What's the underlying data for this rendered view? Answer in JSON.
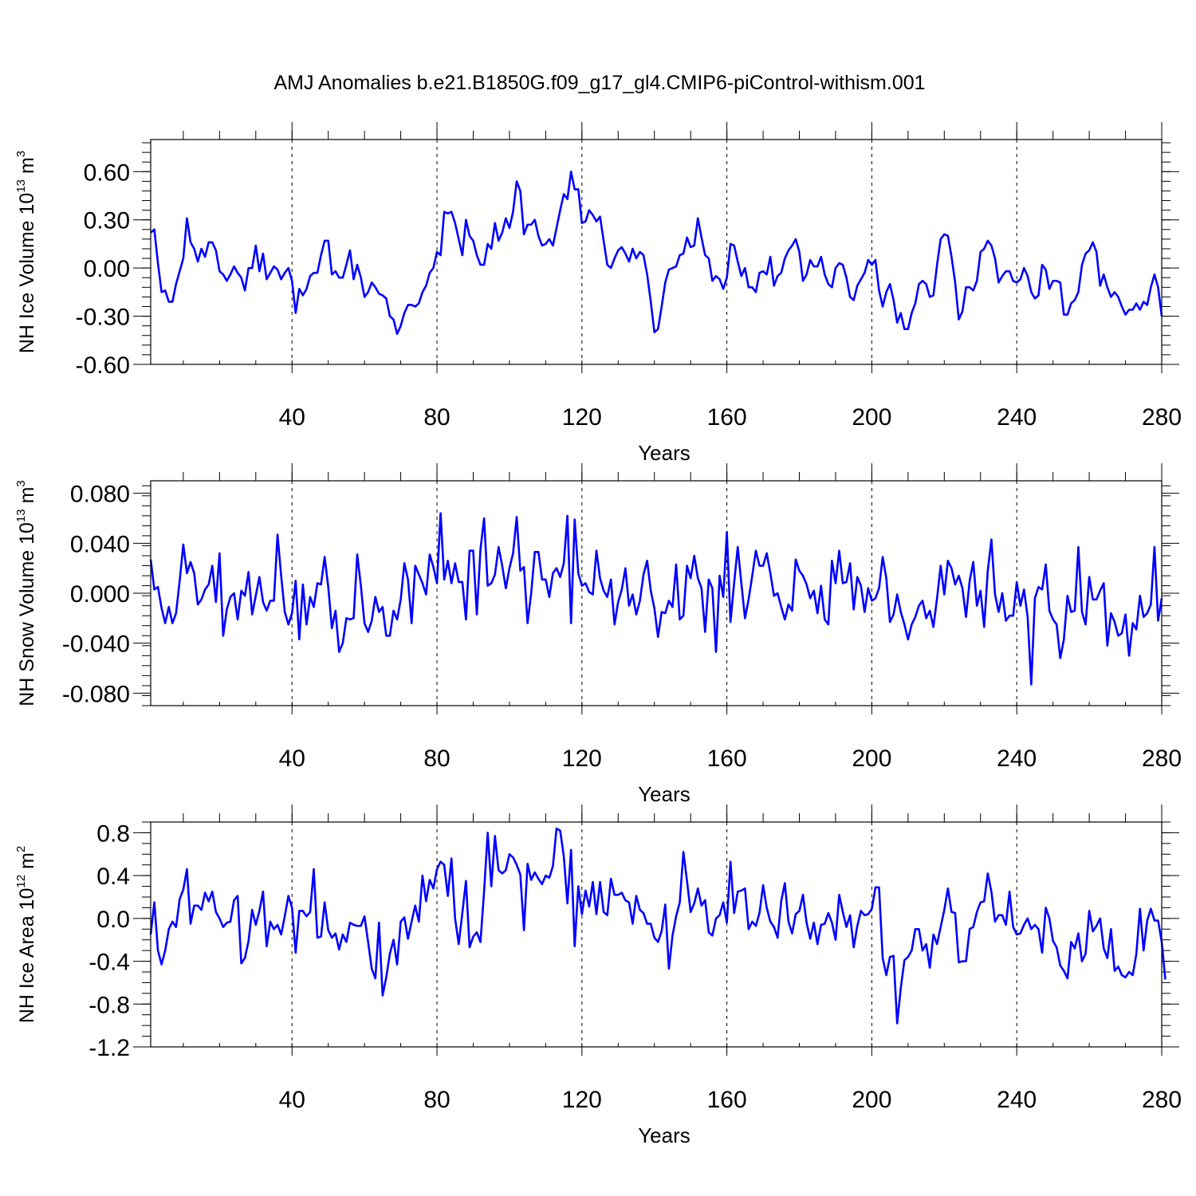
{
  "title": "AMJ Anomalies b.e21.B1850G.f09_g17_gl4.CMIP6-piControl-withism.001",
  "colors": {
    "line": "#0000ff",
    "axis": "#000000",
    "grid": "#000000"
  },
  "chart_data": [
    {
      "type": "line",
      "ylabel_main": "NH Ice Volume 10",
      "ylabel_exp": "13",
      "ylabel_unit": " m",
      "ylabel_unit_exp": "3",
      "xlabel": "Years",
      "xlim": [
        1,
        280
      ],
      "ylim": [
        -0.6,
        0.8
      ],
      "yticks": [
        -0.6,
        -0.3,
        0.0,
        0.3,
        0.6
      ],
      "ytick_labels": [
        "-0.60",
        "-0.30",
        "0.00",
        "0.30",
        "0.60"
      ],
      "xticks": [
        40,
        80,
        120,
        160,
        200,
        240,
        280
      ],
      "xtick_labels": [
        "40",
        "80",
        "120",
        "160",
        "200",
        "240",
        "280"
      ],
      "grid": "vertical dashed at x ticks",
      "series": [
        {
          "x_start": 1,
          "values": [
            0.22,
            0.24,
            0.03,
            -0.15,
            -0.14,
            -0.21,
            -0.21,
            -0.1,
            -0.02,
            0.06,
            0.31,
            0.16,
            0.12,
            0.04,
            0.12,
            0.07,
            0.16,
            0.16,
            0.11,
            -0.02,
            -0.04,
            -0.08,
            -0.04,
            0.01,
            -0.03,
            -0.06,
            -0.14,
            0.0,
            0.0,
            0.14,
            -0.02,
            0.09,
            -0.07,
            -0.03,
            0.01,
            -0.01,
            -0.07,
            -0.03,
            0.0,
            -0.08,
            -0.28,
            -0.13,
            -0.17,
            -0.13,
            -0.05,
            -0.03,
            -0.03,
            0.08,
            0.17,
            0.17,
            -0.04,
            -0.02,
            -0.06,
            -0.06,
            0.02,
            0.11,
            -0.07,
            0.02,
            -0.06,
            -0.18,
            -0.15,
            -0.09,
            -0.12,
            -0.16,
            -0.17,
            -0.19,
            -0.3,
            -0.32,
            -0.41,
            -0.36,
            -0.28,
            -0.23,
            -0.23,
            -0.24,
            -0.22,
            -0.15,
            -0.11,
            -0.03,
            0.0,
            0.1,
            0.08,
            0.35,
            0.34,
            0.35,
            0.28,
            0.18,
            0.08,
            0.3,
            0.2,
            0.17,
            0.08,
            0.02,
            0.02,
            0.15,
            0.12,
            0.28,
            0.17,
            0.22,
            0.31,
            0.25,
            0.35,
            0.54,
            0.48,
            0.21,
            0.27,
            0.27,
            0.3,
            0.2,
            0.14,
            0.15,
            0.18,
            0.14,
            0.25,
            0.36,
            0.46,
            0.43,
            0.6,
            0.49,
            0.49,
            0.28,
            0.29,
            0.36,
            0.33,
            0.29,
            0.32,
            0.17,
            0.02,
            0.0,
            0.06,
            0.11,
            0.13,
            0.09,
            0.04,
            0.12,
            0.06,
            0.1,
            0.08,
            -0.04,
            -0.21,
            -0.4,
            -0.38,
            -0.24,
            -0.09,
            -0.01,
            0.0,
            0.01,
            0.08,
            0.09,
            0.19,
            0.13,
            0.14,
            0.31,
            0.19,
            0.08,
            0.06,
            -0.08,
            -0.05,
            -0.07,
            -0.13,
            -0.06,
            0.15,
            0.14,
            0.04,
            -0.05,
            0.0,
            -0.12,
            -0.12,
            -0.15,
            -0.03,
            -0.02,
            -0.04,
            0.07,
            -0.11,
            -0.05,
            -0.03,
            0.06,
            0.11,
            0.14,
            0.18,
            0.1,
            -0.08,
            -0.04,
            0.05,
            0.01,
            0.01,
            0.07,
            -0.04,
            -0.1,
            -0.12,
            0.0,
            0.03,
            0.02,
            -0.06,
            -0.18,
            -0.2,
            -0.11,
            -0.07,
            -0.03,
            0.05,
            0.02,
            0.05,
            -0.14,
            -0.24,
            -0.15,
            -0.1,
            -0.2,
            -0.34,
            -0.28,
            -0.38,
            -0.38,
            -0.28,
            -0.22,
            -0.1,
            -0.08,
            -0.1,
            -0.18,
            -0.17,
            0.02,
            0.18,
            0.21,
            0.2,
            0.07,
            -0.09,
            -0.32,
            -0.27,
            -0.12,
            -0.12,
            -0.14,
            -0.08,
            0.1,
            0.12,
            0.17,
            0.14,
            0.06,
            -0.09,
            -0.05,
            -0.02,
            -0.02,
            -0.08,
            -0.09,
            -0.07,
            0.0,
            -0.05,
            -0.15,
            -0.19,
            -0.17,
            0.02,
            -0.01,
            -0.13,
            -0.08,
            -0.08,
            -0.09,
            -0.29,
            -0.29,
            -0.22,
            -0.2,
            -0.15,
            0.02,
            0.09,
            0.11,
            0.16,
            0.1,
            -0.11,
            -0.04,
            -0.12,
            -0.18,
            -0.15,
            -0.18,
            -0.24,
            -0.29,
            -0.26,
            -0.26,
            -0.22,
            -0.26,
            -0.21,
            -0.23,
            -0.12,
            -0.04,
            -0.12,
            -0.3
          ]
        }
      ]
    },
    {
      "type": "line",
      "ylabel_main": "NH Snow Volume 10",
      "ylabel_exp": "13",
      "ylabel_unit": " m",
      "ylabel_unit_exp": "3",
      "xlabel": "Years",
      "xlim": [
        1,
        280
      ],
      "ylim": [
        -0.09,
        0.09
      ],
      "yticks": [
        -0.08,
        -0.04,
        0.0,
        0.04,
        0.08
      ],
      "ytick_labels": [
        "-0.080",
        "-0.040",
        "0.000",
        "0.040",
        "0.080"
      ],
      "xticks": [
        40,
        80,
        120,
        160,
        200,
        240,
        280
      ],
      "xtick_labels": [
        "40",
        "80",
        "120",
        "160",
        "200",
        "240",
        "280"
      ],
      "grid": "vertical dashed at x ticks",
      "series": [
        {
          "x_start": 1,
          "values": [
            0.027,
            0.003,
            0.005,
            -0.012,
            -0.024,
            -0.011,
            -0.024,
            -0.016,
            0.01,
            0.039,
            0.016,
            0.025,
            0.016,
            -0.009,
            -0.005,
            0.003,
            0.007,
            0.022,
            -0.007,
            0.032,
            -0.034,
            -0.013,
            -0.003,
            0.0,
            -0.021,
            0.002,
            -0.002,
            0.017,
            -0.017,
            -0.002,
            0.013,
            -0.007,
            -0.014,
            -0.006,
            -0.006,
            0.047,
            0.014,
            -0.015,
            -0.025,
            -0.016,
            0.01,
            -0.037,
            0.007,
            -0.025,
            -0.003,
            -0.011,
            0.008,
            0.007,
            0.029,
            0.005,
            -0.028,
            -0.014,
            -0.047,
            -0.04,
            -0.02,
            -0.021,
            -0.02,
            0.031,
            0.006,
            -0.024,
            -0.031,
            -0.022,
            -0.003,
            -0.015,
            -0.011,
            -0.034,
            -0.034,
            -0.014,
            -0.021,
            -0.005,
            0.024,
            0.011,
            -0.024,
            0.022,
            0.015,
            0.008,
            -0.001,
            0.031,
            0.021,
            0.008,
            0.064,
            0.011,
            0.026,
            0.008,
            0.024,
            0.009,
            0.009,
            -0.021,
            0.034,
            0.034,
            -0.017,
            0.035,
            0.06,
            0.006,
            0.008,
            0.015,
            0.037,
            0.022,
            0.004,
            0.02,
            0.032,
            0.061,
            0.018,
            0.021,
            -0.024,
            0.0,
            0.033,
            0.033,
            0.011,
            0.011,
            -0.003,
            0.016,
            0.02,
            0.013,
            0.024,
            0.062,
            -0.024,
            0.059,
            0.016,
            0.006,
            0.008,
            0.001,
            -0.001,
            0.034,
            0.012,
            0.002,
            -0.003,
            0.011,
            -0.025,
            -0.007,
            0.003,
            0.02,
            -0.01,
            -0.001,
            -0.017,
            -0.006,
            0.015,
            0.026,
            0.002,
            -0.012,
            -0.035,
            -0.015,
            -0.016,
            -0.006,
            -0.011,
            0.023,
            -0.021,
            -0.018,
            0.022,
            0.012,
            0.03,
            0.012,
            0.004,
            -0.031,
            0.011,
            0.004,
            -0.047,
            0.014,
            -0.003,
            0.049,
            -0.023,
            0.008,
            0.037,
            0.008,
            -0.02,
            -0.005,
            0.014,
            0.034,
            0.022,
            0.022,
            0.032,
            0.016,
            -0.002,
            0.0,
            -0.011,
            -0.021,
            -0.009,
            -0.014,
            0.027,
            0.018,
            0.014,
            0.007,
            -0.004,
            0.002,
            -0.016,
            0.006,
            -0.021,
            -0.025,
            0.026,
            0.008,
            0.034,
            0.008,
            0.009,
            0.024,
            -0.013,
            0.013,
            0.006,
            -0.015,
            0.004,
            -0.006,
            -0.004,
            0.004,
            0.029,
            0.012,
            -0.023,
            -0.017,
            -0.001,
            -0.015,
            -0.025,
            -0.037,
            -0.025,
            -0.019,
            -0.01,
            -0.006,
            -0.02,
            -0.014,
            -0.027,
            -0.004,
            0.022,
            -0.001,
            0.026,
            0.02,
            0.007,
            0.014,
            0.004,
            -0.019,
            0.01,
            0.025,
            -0.01,
            0.002,
            -0.027,
            0.018,
            0.043,
            -0.001,
            -0.015,
            0.0,
            -0.022,
            -0.018,
            -0.018,
            0.009,
            -0.01,
            0.003,
            -0.019,
            -0.073,
            -0.004,
            0.005,
            0.003,
            0.023,
            -0.014,
            -0.021,
            -0.025,
            -0.052,
            -0.037,
            -0.002,
            -0.015,
            -0.014,
            0.037,
            -0.015,
            -0.025,
            0.013,
            -0.005,
            -0.005,
            0.002,
            0.008,
            -0.042,
            -0.016,
            -0.023,
            -0.034,
            -0.032,
            -0.017,
            -0.05,
            -0.024,
            -0.029,
            -0.002,
            -0.019,
            -0.016,
            -0.009,
            0.037,
            -0.022,
            -0.004
          ]
        }
      ]
    },
    {
      "type": "line",
      "ylabel_main": "NH Ice Area 10",
      "ylabel_exp": "12",
      "ylabel_unit": " m",
      "ylabel_unit_exp": "2",
      "xlabel": "Years",
      "xlim": [
        1,
        280
      ],
      "ylim": [
        -1.2,
        0.9
      ],
      "yticks": [
        -1.2,
        -0.8,
        -0.4,
        0.0,
        0.4,
        0.8
      ],
      "ytick_labels": [
        "-1.2",
        "-0.8",
        "-0.4",
        "0.0",
        "0.4",
        "0.8"
      ],
      "xticks": [
        40,
        80,
        120,
        160,
        200,
        240,
        280
      ],
      "xtick_labels": [
        "40",
        "80",
        "120",
        "160",
        "200",
        "240",
        "280"
      ],
      "grid": "vertical dashed at x ticks",
      "series": [
        {
          "x_start": 1,
          "values": [
            -0.15,
            0.15,
            -0.3,
            -0.43,
            -0.3,
            -0.1,
            -0.03,
            -0.08,
            0.18,
            0.27,
            0.46,
            -0.05,
            0.12,
            0.12,
            0.08,
            0.24,
            0.16,
            0.25,
            0.06,
            0.0,
            -0.08,
            -0.04,
            -0.03,
            0.17,
            0.21,
            -0.42,
            -0.37,
            -0.21,
            0.08,
            -0.06,
            0.07,
            0.25,
            -0.26,
            -0.03,
            -0.1,
            -0.06,
            -0.15,
            0.02,
            0.21,
            0.1,
            -0.32,
            0.07,
            0.07,
            0.02,
            0.06,
            0.46,
            -0.18,
            -0.17,
            0.15,
            -0.11,
            -0.18,
            -0.14,
            -0.29,
            -0.15,
            -0.22,
            -0.04,
            -0.06,
            -0.07,
            -0.07,
            0.02,
            -0.22,
            -0.47,
            -0.56,
            -0.04,
            -0.72,
            -0.55,
            -0.33,
            -0.2,
            -0.43,
            -0.03,
            0.01,
            -0.19,
            -0.03,
            0.12,
            -0.03,
            0.4,
            0.16,
            0.36,
            0.28,
            0.46,
            0.53,
            0.5,
            0.21,
            0.56,
            0.0,
            -0.24,
            0.05,
            0.35,
            -0.27,
            -0.17,
            -0.13,
            -0.22,
            0.25,
            0.8,
            0.3,
            0.77,
            0.45,
            0.42,
            0.45,
            0.6,
            0.57,
            0.5,
            0.41,
            -0.11,
            0.51,
            0.36,
            0.43,
            0.37,
            0.32,
            0.4,
            0.38,
            0.49,
            0.84,
            0.82,
            0.58,
            0.14,
            0.64,
            -0.26,
            0.3,
            0.04,
            0.26,
            0.11,
            0.34,
            0.04,
            0.34,
            0.06,
            0.03,
            0.37,
            0.22,
            0.22,
            0.24,
            0.17,
            0.15,
            -0.05,
            0.21,
            0.08,
            0.05,
            -0.05,
            -0.05,
            -0.18,
            -0.22,
            -0.12,
            0.13,
            -0.47,
            -0.16,
            0.02,
            0.15,
            0.62,
            0.35,
            0.06,
            0.14,
            0.28,
            0.12,
            0.17,
            -0.13,
            -0.16,
            0.0,
            0.03,
            0.15,
            -0.04,
            0.53,
            0.05,
            0.25,
            0.26,
            0.28,
            -0.1,
            -0.03,
            -0.07,
            0.05,
            0.31,
            0.1,
            -0.03,
            -0.08,
            -0.18,
            0.16,
            0.33,
            -0.03,
            -0.14,
            0.04,
            0.07,
            0.22,
            -0.04,
            -0.19,
            -0.04,
            -0.24,
            -0.06,
            -0.05,
            0.05,
            -0.04,
            -0.2,
            0.22,
            0.06,
            -0.08,
            0.03,
            -0.27,
            -0.07,
            0.07,
            0.03,
            0.04,
            0.09,
            0.29,
            0.29,
            -0.37,
            -0.53,
            -0.36,
            -0.35,
            -0.98,
            -0.65,
            -0.39,
            -0.36,
            -0.3,
            -0.1,
            -0.1,
            -0.3,
            -0.24,
            -0.46,
            -0.15,
            -0.24,
            -0.08,
            0.08,
            0.28,
            0.06,
            0.05,
            -0.41,
            -0.4,
            -0.4,
            -0.1,
            -0.08,
            0.06,
            0.15,
            0.16,
            0.42,
            0.25,
            -0.03,
            0.03,
            0.03,
            -0.06,
            0.25,
            -0.08,
            -0.15,
            -0.14,
            -0.06,
            0.0,
            -0.1,
            -0.06,
            -0.1,
            -0.32,
            0.1,
            0.0,
            -0.21,
            -0.27,
            -0.44,
            -0.49,
            -0.56,
            -0.22,
            -0.28,
            -0.14,
            -0.4,
            -0.33,
            0.07,
            -0.12,
            -0.07,
            0.0,
            -0.28,
            -0.37,
            -0.1,
            -0.49,
            -0.45,
            -0.53,
            -0.55,
            -0.5,
            -0.53,
            -0.33,
            0.09,
            -0.3,
            -0.02,
            0.09,
            -0.02,
            -0.02,
            -0.22,
            -0.57
          ]
        }
      ]
    }
  ]
}
